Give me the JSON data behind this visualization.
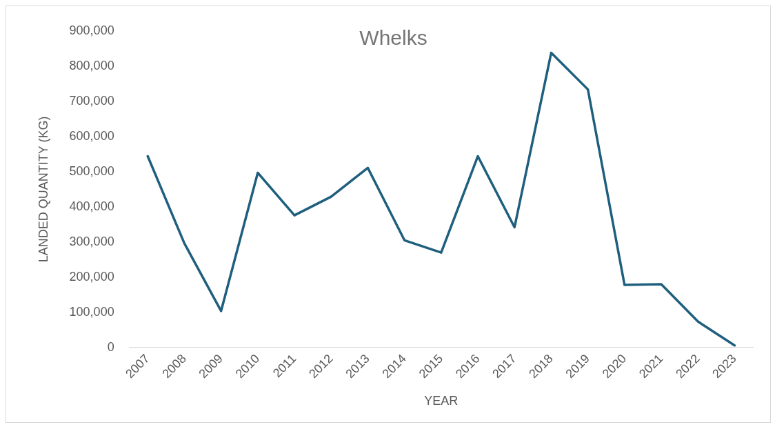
{
  "chart_data": {
    "type": "line",
    "title": "Whelks",
    "xlabel": "YEAR",
    "ylabel": "LANDED QUANTITY (KG)",
    "categories": [
      "2007",
      "2008",
      "2009",
      "2010",
      "2011",
      "2012",
      "2013",
      "2014",
      "2015",
      "2016",
      "2017",
      "2018",
      "2019",
      "2020",
      "2021",
      "2022",
      "2023"
    ],
    "series": [
      {
        "color": "#1f5f7e",
        "values": [
          544000,
          296000,
          104000,
          497000,
          376000,
          429000,
          511000,
          305000,
          270000,
          544000,
          342000,
          838000,
          734000,
          178000,
          180000,
          74000,
          6000
        ]
      }
    ],
    "ylim": [
      0,
      900000
    ],
    "yticks": [
      {
        "value": 0,
        "label": "0"
      },
      {
        "value": 100000,
        "label": "100,000"
      },
      {
        "value": 200000,
        "label": "200,000"
      },
      {
        "value": 300000,
        "label": "300,000"
      },
      {
        "value": 400000,
        "label": "400,000"
      },
      {
        "value": 500000,
        "label": "500,000"
      },
      {
        "value": 600000,
        "label": "600,000"
      },
      {
        "value": 700000,
        "label": "700,000"
      },
      {
        "value": 800000,
        "label": "800,000"
      },
      {
        "value": 900000,
        "label": "900,000"
      }
    ],
    "grid": false,
    "legend": false,
    "marker": "none",
    "line_style": "solid"
  }
}
